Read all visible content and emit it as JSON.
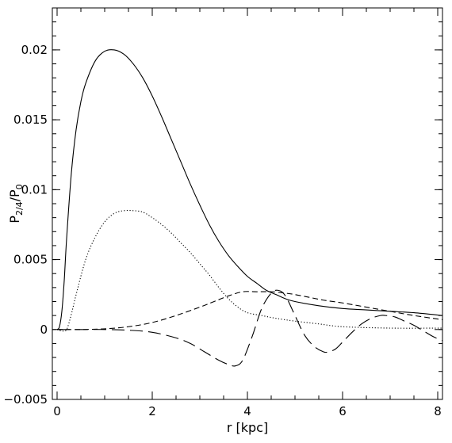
{
  "chart_data": {
    "type": "line",
    "title": "",
    "xlabel": "r [kpc]",
    "ylabel": {
      "main": "P",
      "sub1": "2/4",
      "sep": "/P",
      "sub2": "0"
    },
    "xlim": [
      -0.1,
      8.1
    ],
    "ylim": [
      -0.005,
      0.023
    ],
    "xticks": [
      {
        "value": 0,
        "label": "0"
      },
      {
        "value": 2,
        "label": "2"
      },
      {
        "value": 4,
        "label": "4"
      },
      {
        "value": 6,
        "label": "6"
      },
      {
        "value": 8,
        "label": "8"
      }
    ],
    "yticks": [
      {
        "value": -0.005,
        "label": "−0.005"
      },
      {
        "value": 0,
        "label": "0"
      },
      {
        "value": 0.005,
        "label": "0.005"
      },
      {
        "value": 0.01,
        "label": "0.01"
      },
      {
        "value": 0.015,
        "label": "0.015"
      },
      {
        "value": 0.02,
        "label": "0.02"
      }
    ],
    "minor_x_step": 0.5,
    "minor_y_step": 0.001,
    "grid": false,
    "legend": "none",
    "series": [
      {
        "style": "solid",
        "x": [
          0,
          0.05,
          0.1,
          0.15,
          0.2,
          0.3,
          0.4,
          0.5,
          0.6,
          0.8,
          1.0,
          1.2,
          1.4,
          1.6,
          1.8,
          2.0,
          2.2,
          2.4,
          2.6,
          2.8,
          3.0,
          3.2,
          3.4,
          3.6,
          3.8,
          4.0,
          4.2,
          4.4,
          4.6,
          4.8,
          5.0,
          5.5,
          6.0,
          6.5,
          7.0,
          7.5,
          8.1
        ],
        "values": [
          0,
          0.0002,
          0.0013,
          0.0035,
          0.0065,
          0.0112,
          0.0143,
          0.0163,
          0.0176,
          0.0192,
          0.0199,
          0.02,
          0.0197,
          0.019,
          0.018,
          0.0167,
          0.0152,
          0.0136,
          0.012,
          0.0104,
          0.0089,
          0.0075,
          0.0063,
          0.0053,
          0.0045,
          0.0038,
          0.0033,
          0.0028,
          0.0025,
          0.0022,
          0.002,
          0.0017,
          0.0015,
          0.0014,
          0.0013,
          0.0012,
          0.001
        ]
      },
      {
        "style": "dotted",
        "x": [
          0,
          0.1,
          0.2,
          0.3,
          0.4,
          0.6,
          0.8,
          1.0,
          1.2,
          1.4,
          1.6,
          1.8,
          2.0,
          2.2,
          2.4,
          2.6,
          2.8,
          3.0,
          3.2,
          3.4,
          3.6,
          3.8,
          4.0,
          4.3,
          4.6,
          5.0,
          5.5,
          6.0,
          7.0,
          8.1
        ],
        "values": [
          0,
          -0.0001,
          0,
          0.0011,
          0.0025,
          0.005,
          0.0066,
          0.0077,
          0.0083,
          0.0085,
          0.0085,
          0.0084,
          0.008,
          0.0075,
          0.0069,
          0.0062,
          0.0055,
          0.0047,
          0.0039,
          0.003,
          0.0022,
          0.0016,
          0.0012,
          0.001,
          0.0008,
          0.0006,
          0.0004,
          0.0002,
          0.0001,
          0.0001
        ]
      },
      {
        "style": "short-dashed",
        "x": [
          0,
          0.5,
          1.0,
          1.5,
          2.0,
          2.5,
          3.0,
          3.3,
          3.6,
          3.9,
          4.2,
          4.5,
          4.8,
          5.0,
          5.3,
          5.6,
          6.0,
          6.5,
          7.0,
          7.5,
          8.1
        ],
        "values": [
          0,
          0,
          5e-05,
          0.0002,
          0.0005,
          0.001,
          0.0016,
          0.002,
          0.0024,
          0.0027,
          0.0027,
          0.0027,
          0.0026,
          0.0025,
          0.0023,
          0.0021,
          0.0019,
          0.0016,
          0.0013,
          0.001,
          0.0007
        ]
      },
      {
        "style": "long-dashed",
        "x": [
          0,
          0.5,
          1.0,
          1.5,
          2.0,
          2.5,
          2.8,
          3.1,
          3.4,
          3.6,
          3.75,
          3.9,
          4.1,
          4.3,
          4.5,
          4.65,
          4.8,
          5.0,
          5.2,
          5.4,
          5.6,
          5.7,
          5.85,
          6.0,
          6.2,
          6.4,
          6.6,
          6.8,
          6.9,
          7.1,
          7.3,
          7.5,
          7.7,
          7.9,
          8.1
        ],
        "values": [
          0,
          0,
          0,
          -5e-05,
          -0.0002,
          -0.0006,
          -0.001,
          -0.0016,
          -0.0022,
          -0.0025,
          -0.0026,
          -0.0022,
          -0.0005,
          0.0015,
          0.0026,
          0.0028,
          0.0024,
          0.001,
          -0.0004,
          -0.0012,
          -0.0016,
          -0.0016,
          -0.0014,
          -0.0009,
          -0.0002,
          0.0004,
          0.0008,
          0.001,
          0.001,
          0.0009,
          0.0006,
          0.0003,
          -0.0001,
          -0.0005,
          -0.0008
        ]
      }
    ]
  }
}
